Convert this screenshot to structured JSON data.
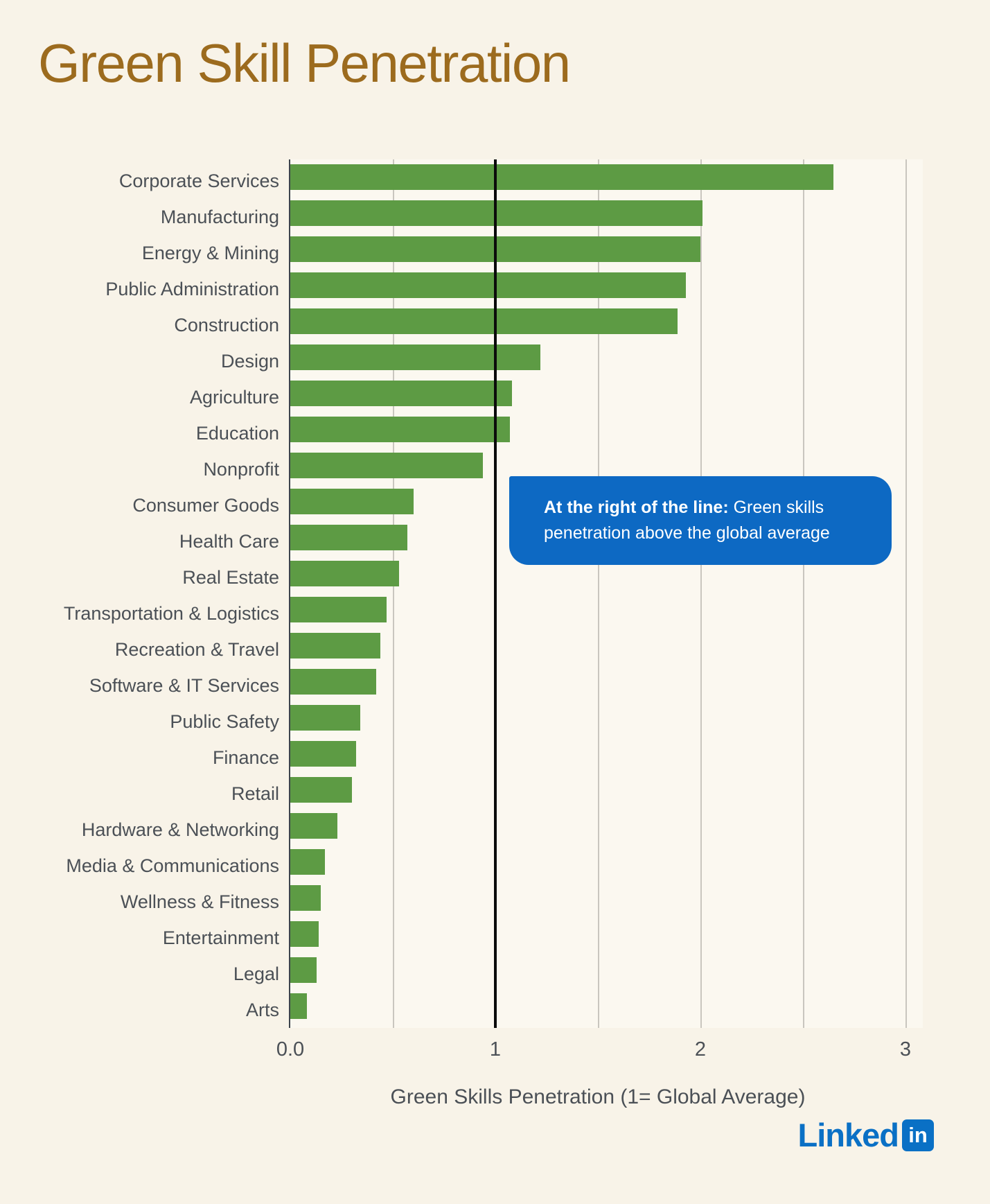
{
  "page": {
    "title": "Green Skill Penetration",
    "background_color": "#f8f3e8",
    "title_color": "#9c6b1e"
  },
  "chart_data": {
    "type": "bar",
    "orientation": "horizontal",
    "title": "Green Skill Penetration",
    "xlabel": "Green Skills Penetration (1= Global Average)",
    "ylabel": "",
    "xlim": [
      0,
      3.09
    ],
    "grid_on": true,
    "x_ticks": [
      {
        "value": 0,
        "label": "0.0"
      },
      {
        "value": 1,
        "label": "1"
      },
      {
        "value": 2,
        "label": "2"
      },
      {
        "value": 3,
        "label": "3"
      }
    ],
    "gridline_values": [
      0.5,
      1.5,
      2,
      2.5,
      3
    ],
    "gridline_color": "#c9c6bf",
    "reference_line": {
      "value": 1,
      "color": "#0b0b0b"
    },
    "bar_color": "#5d9b44",
    "categories": [
      "Corporate Services",
      "Manufacturing",
      "Energy & Mining",
      "Public Administration",
      "Construction",
      "Design",
      "Agriculture",
      "Education",
      "Nonprofit",
      "Consumer Goods",
      "Health Care",
      "Real Estate",
      "Transportation & Logistics",
      "Recreation & Travel",
      "Software & IT Services",
      "Public Safety",
      "Finance",
      "Retail",
      "Hardware & Networking",
      "Media & Communications",
      "Wellness & Fitness",
      "Entertainment",
      "Legal",
      "Arts"
    ],
    "values": [
      2.65,
      2.01,
      2.0,
      1.93,
      1.89,
      1.22,
      1.08,
      1.07,
      0.94,
      0.6,
      0.57,
      0.53,
      0.47,
      0.44,
      0.42,
      0.34,
      0.32,
      0.3,
      0.23,
      0.17,
      0.15,
      0.14,
      0.13,
      0.08
    ]
  },
  "callout": {
    "bold_text": "At the right of the line:",
    "text": " Green skills penetration above the global average",
    "background_color": "#0d69c3",
    "text_color": "#ffffff"
  },
  "brand": {
    "wordmark": "Linked",
    "badge": "in",
    "color": "#0a70c5"
  }
}
